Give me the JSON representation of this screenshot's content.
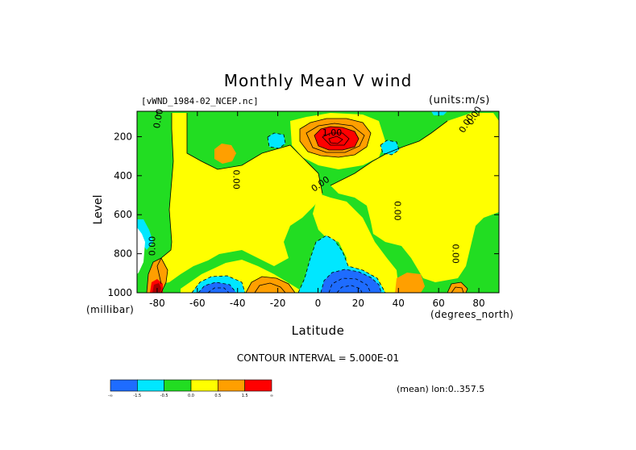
{
  "chart_data": {
    "type": "heatmap",
    "title": "Monthly Mean V wind",
    "dataset": "[vWND_1984-02_NCEP.nc]",
    "units": "(units:m/s)",
    "xlabel": "Latitude",
    "x_unit": "(degrees_north)",
    "ylabel": "Level",
    "y_unit": "(millibar)",
    "xlim": [
      -90,
      90
    ],
    "ylim": [
      1000,
      70
    ],
    "y_inverted": true,
    "x_ticks": [
      "-80",
      "-60",
      "-40",
      "-20",
      "0",
      "20",
      "40",
      "60",
      "80"
    ],
    "x_tick_values": [
      -80,
      -60,
      -40,
      -20,
      0,
      20,
      40,
      60,
      80
    ],
    "y_ticks": [
      "200",
      "400",
      "600",
      "800",
      "1000"
    ],
    "y_tick_values": [
      200,
      400,
      600,
      800,
      1000
    ],
    "contour_interval_text": "CONTOUR INTERVAL = 5.000E-01",
    "mean_text": "(mean) lon:0..357.5",
    "contour_labels": [
      "0.00",
      "0.00",
      "0.00",
      "1.00",
      "0.00",
      "0.00",
      "0.00",
      "0.00",
      "0.00"
    ],
    "colorbar": {
      "colors": [
        "#1e6cff",
        "#00e7ff",
        "#22dd22",
        "#ffff00",
        "#ff9f00",
        "#ff0000"
      ],
      "labels": [
        "-∞",
        "-1.5",
        "-0.5",
        "0.0",
        "0.5",
        "1.5",
        "∞"
      ]
    },
    "features": [
      {
        "lat": -80,
        "lev": 990,
        "value": 3.0,
        "kind": "max"
      },
      {
        "lat": 8,
        "lev": 160,
        "value": 2.0,
        "kind": "max"
      },
      {
        "lat": 13,
        "lev": 950,
        "value": -2.0,
        "kind": "min"
      },
      {
        "lat": -55,
        "lev": 960,
        "value": -2.0,
        "kind": "min"
      }
    ]
  }
}
